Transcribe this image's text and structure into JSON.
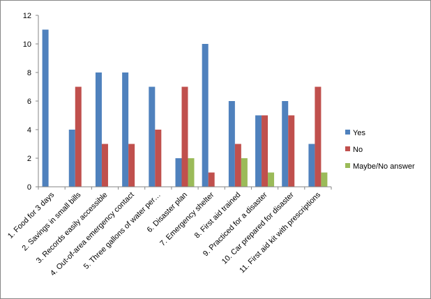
{
  "chart_data": {
    "type": "bar",
    "categories": [
      "1. Food for 3 days",
      "2. Savings in small bills",
      "3. Records easily accessible",
      "4. Out-of-area emergency contact",
      "5. Three gallons of water per…",
      "6. Disaster plan",
      "7. Emergency shelter",
      "8. First aid trained",
      "9. Practiced for a disaster",
      "10. Car prepared for disaster",
      "11. First aid kit with prescriptions"
    ],
    "series": [
      {
        "name": "Yes",
        "color": "#4F81BD",
        "values": [
          11,
          4,
          8,
          8,
          7,
          2,
          10,
          6,
          5,
          6,
          3
        ]
      },
      {
        "name": "No",
        "color": "#C0504D",
        "values": [
          0,
          7,
          3,
          3,
          4,
          7,
          1,
          3,
          5,
          5,
          7
        ]
      },
      {
        "name": "Maybe/No answer",
        "color": "#9BBB59",
        "values": [
          0,
          0,
          0,
          0,
          0,
          2,
          0,
          2,
          1,
          0,
          1
        ]
      }
    ],
    "title": "",
    "xlabel": "",
    "ylabel": "",
    "ylim": [
      0,
      12
    ],
    "yticks": [
      "0",
      "2",
      "4",
      "6",
      "8",
      "10",
      "12"
    ],
    "grid": false,
    "legend": "right"
  }
}
